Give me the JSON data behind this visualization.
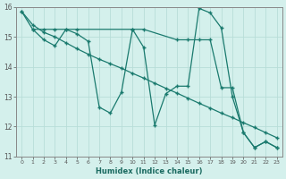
{
  "xlabel": "Humidex (Indice chaleur)",
  "background_color": "#d4f0ec",
  "line_color": "#1a7a6e",
  "grid_color": "#b8ddd8",
  "xlim": [
    -0.5,
    23.5
  ],
  "ylim": [
    11,
    16
  ],
  "xticks": [
    0,
    1,
    2,
    3,
    4,
    5,
    6,
    7,
    8,
    9,
    10,
    11,
    12,
    13,
    14,
    15,
    16,
    17,
    18,
    19,
    20,
    21,
    22,
    23
  ],
  "yticks": [
    11,
    12,
    13,
    14,
    15,
    16
  ],
  "line1_x": [
    0,
    1,
    2,
    3,
    4,
    5,
    10,
    11,
    14,
    15,
    16,
    17,
    18,
    19,
    20,
    21,
    22,
    23
  ],
  "line1_y": [
    15.85,
    15.25,
    15.25,
    15.25,
    15.25,
    15.25,
    15.25,
    15.25,
    14.9,
    14.9,
    14.9,
    14.9,
    13.3,
    13.3,
    11.8,
    11.3,
    11.5,
    11.3
  ],
  "line2_x": [
    1,
    2,
    3,
    4,
    5,
    6,
    7,
    8,
    9,
    10,
    11,
    12,
    13,
    14,
    15,
    16,
    17,
    18,
    19,
    20,
    21,
    22,
    23
  ],
  "line2_y": [
    15.25,
    14.9,
    14.7,
    15.25,
    15.1,
    14.85,
    12.65,
    12.45,
    13.15,
    15.25,
    14.65,
    12.05,
    13.1,
    13.35,
    13.35,
    15.95,
    15.8,
    15.3,
    13.0,
    11.8,
    11.3,
    11.5,
    11.3
  ],
  "line3_x": [
    0,
    1,
    2,
    3,
    4,
    5,
    6,
    7,
    8,
    9,
    10,
    11,
    12,
    13,
    14,
    15,
    16,
    17,
    18,
    19,
    20,
    21,
    22,
    23
  ],
  "line3_y": [
    15.85,
    15.4,
    15.15,
    15.0,
    14.8,
    14.6,
    14.42,
    14.25,
    14.1,
    13.95,
    13.78,
    13.62,
    13.45,
    13.28,
    13.12,
    12.95,
    12.78,
    12.62,
    12.45,
    12.3,
    12.13,
    11.97,
    11.8,
    11.63
  ]
}
